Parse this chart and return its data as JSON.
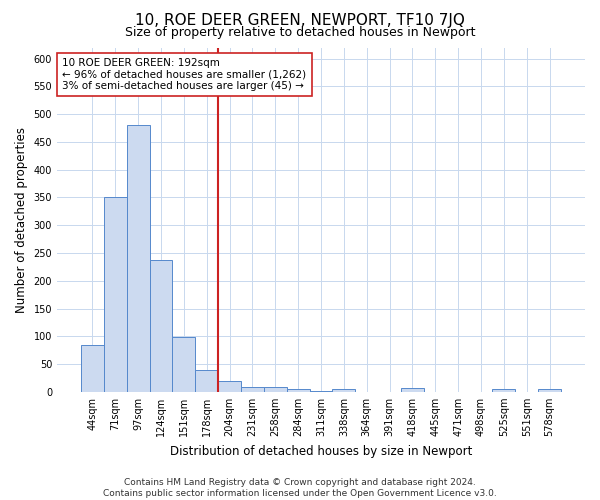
{
  "title": "10, ROE DEER GREEN, NEWPORT, TF10 7JQ",
  "subtitle": "Size of property relative to detached houses in Newport",
  "xlabel": "Distribution of detached houses by size in Newport",
  "ylabel": "Number of detached properties",
  "categories": [
    "44sqm",
    "71sqm",
    "97sqm",
    "124sqm",
    "151sqm",
    "178sqm",
    "204sqm",
    "231sqm",
    "258sqm",
    "284sqm",
    "311sqm",
    "338sqm",
    "364sqm",
    "391sqm",
    "418sqm",
    "445sqm",
    "471sqm",
    "498sqm",
    "525sqm",
    "551sqm",
    "578sqm"
  ],
  "values": [
    85,
    350,
    480,
    237,
    98,
    40,
    20,
    9,
    8,
    5,
    2,
    5,
    0,
    0,
    6,
    0,
    0,
    0,
    5,
    0,
    5
  ],
  "bar_color": "#ccdaf0",
  "bar_edge_color": "#5588cc",
  "red_line_index": 6,
  "red_line_color": "#cc2222",
  "annotation_text_line1": "10 ROE DEER GREEN: 192sqm",
  "annotation_text_line2": "← 96% of detached houses are smaller (1,262)",
  "annotation_text_line3": "3% of semi-detached houses are larger (45) →",
  "ylim": [
    0,
    620
  ],
  "yticks": [
    0,
    50,
    100,
    150,
    200,
    250,
    300,
    350,
    400,
    450,
    500,
    550,
    600
  ],
  "background_color": "#ffffff",
  "grid_color": "#c8d8ee",
  "footer_line1": "Contains HM Land Registry data © Crown copyright and database right 2024.",
  "footer_line2": "Contains public sector information licensed under the Open Government Licence v3.0.",
  "title_fontsize": 11,
  "subtitle_fontsize": 9,
  "axis_label_fontsize": 8.5,
  "tick_fontsize": 7,
  "annotation_fontsize": 7.5,
  "footer_fontsize": 6.5
}
